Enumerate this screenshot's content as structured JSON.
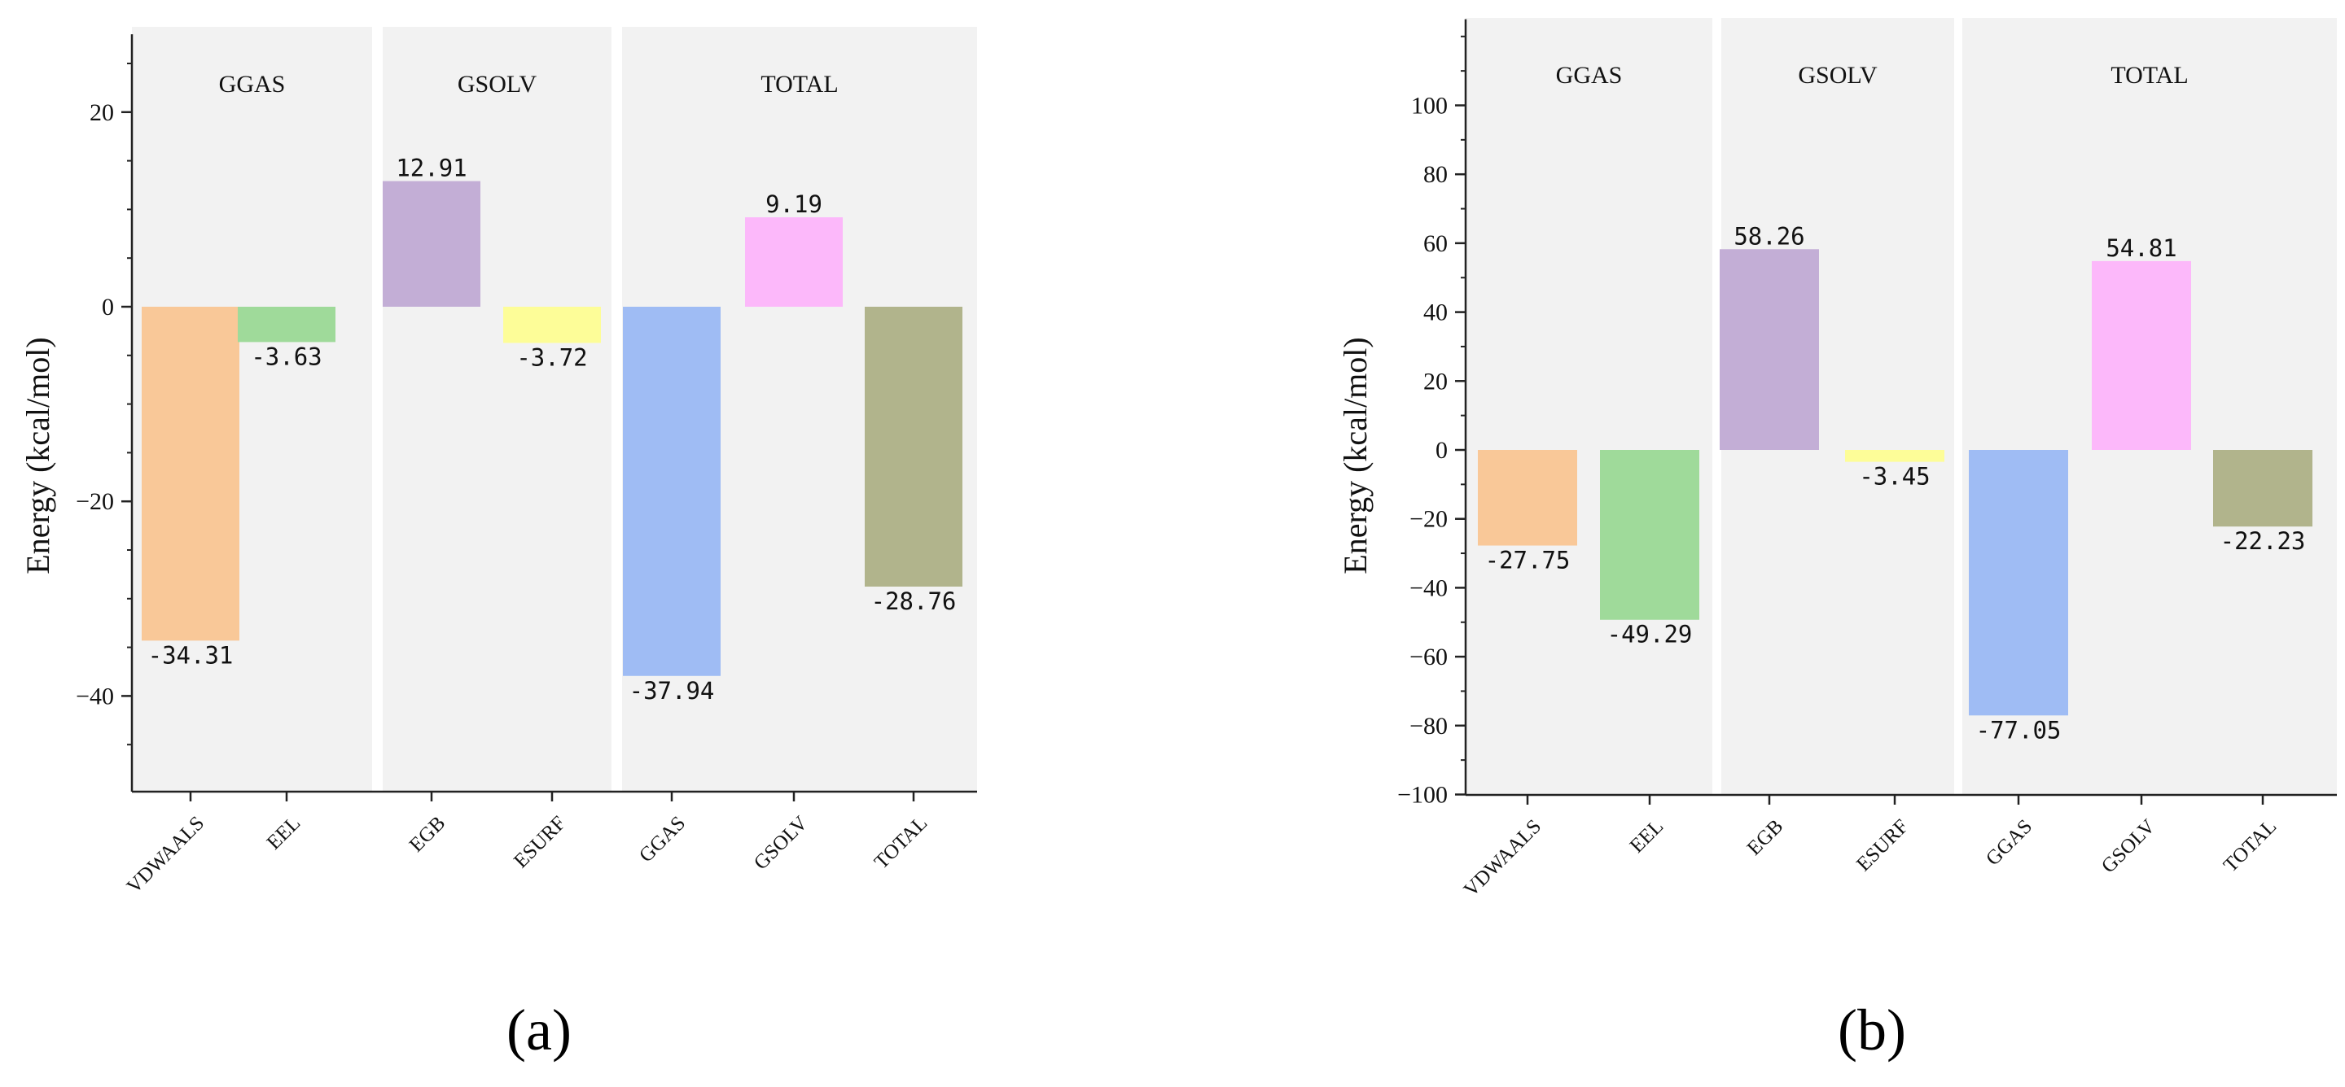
{
  "chart_data": [
    {
      "type": "bar",
      "panel_label": "(a)",
      "ylabel": "Energy  (kcal/mol)",
      "ylim": [
        -50,
        28
      ],
      "yticks": [
        -40,
        -20,
        0,
        20
      ],
      "minor_tick_step": 5,
      "categories": [
        "VDWAALS",
        "EEL",
        "EGB",
        "ESURF",
        "GGAS",
        "GSOLV",
        "TOTAL"
      ],
      "values": [
        -34.31,
        -3.63,
        12.91,
        -3.72,
        -37.94,
        9.19,
        -28.76
      ],
      "value_labels": [
        "-34.31",
        "-3.63",
        "12.91",
        "-3.72",
        "-37.94",
        "9.19",
        "-28.76"
      ],
      "colors": [
        "#F9C898",
        "#9FDA9A",
        "#C3AED6",
        "#FDFD98",
        "#9FBCF4",
        "#FCB8FA",
        "#B1B48C"
      ],
      "groups": [
        {
          "name": "GGAS",
          "start": 0,
          "end": 1
        },
        {
          "name": "GSOLV",
          "start": 2,
          "end": 3
        },
        {
          "name": "TOTAL",
          "start": 4,
          "end": 6
        }
      ]
    },
    {
      "type": "bar",
      "panel_label": "(b)",
      "ylabel": "Energy  (kcal/mol)",
      "ylim": [
        -100,
        125
      ],
      "yticks": [
        -100,
        -80,
        -60,
        -40,
        -20,
        0,
        20,
        40,
        60,
        80,
        100
      ],
      "minor_tick_step": 10,
      "categories": [
        "VDWAALS",
        "EEL",
        "EGB",
        "ESURF",
        "GGAS",
        "GSOLV",
        "TOTAL"
      ],
      "values": [
        -27.75,
        -49.29,
        58.26,
        -3.45,
        -77.05,
        54.81,
        -22.23
      ],
      "value_labels": [
        "-27.75",
        "-49.29",
        "58.26",
        "-3.45",
        "-77.05",
        "54.81",
        "-22.23"
      ],
      "colors": [
        "#F9C898",
        "#9FDA9A",
        "#C3AED6",
        "#FDFD98",
        "#9FBCF4",
        "#FCB8FA",
        "#B1B48C"
      ],
      "groups": [
        {
          "name": "GGAS",
          "start": 0,
          "end": 1
        },
        {
          "name": "GSOLV",
          "start": 2,
          "end": 3
        },
        {
          "name": "TOTAL",
          "start": 4,
          "end": 6
        }
      ]
    }
  ]
}
